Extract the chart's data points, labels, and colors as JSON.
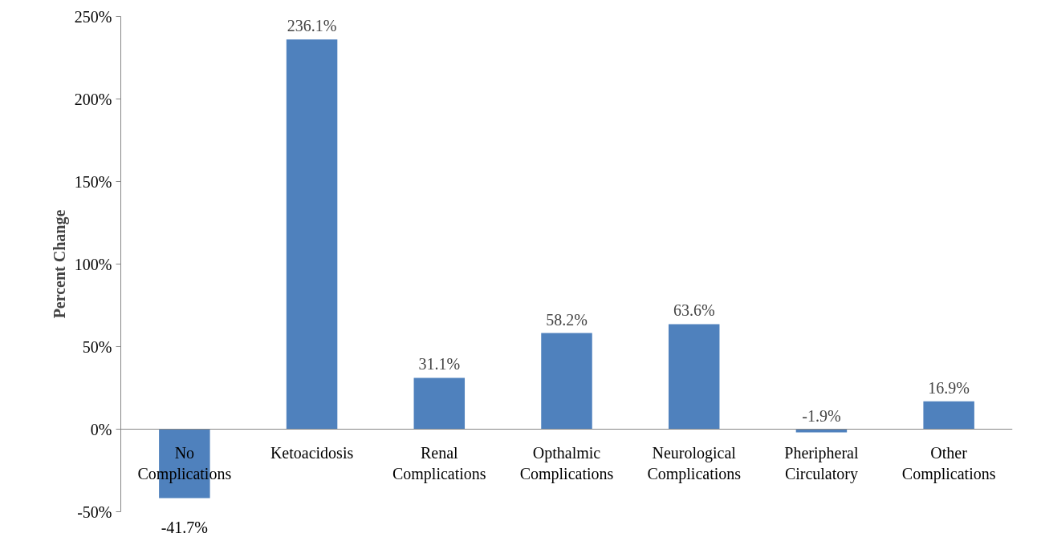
{
  "chart_data": {
    "type": "bar",
    "ylabel": "Percent Change",
    "categories": [
      "No\nComplications",
      "Ketoacidosis",
      "Renal\nComplications",
      "Opthalmic\nComplications",
      "Neurological\nComplications",
      "Pheripheral\nCirculatory",
      "Other\nComplications"
    ],
    "values": [
      -41.7,
      236.1,
      31.1,
      58.2,
      63.6,
      -1.9,
      16.9
    ],
    "color": "#4f81bd",
    "value_labels": [
      "-41.7%",
      "236.1%",
      "31.1%",
      "58.2%",
      "63.6%",
      "-1.9%",
      "16.9%"
    ],
    "ylim": [
      -50,
      250
    ],
    "yticks": [
      {
        "value": -50,
        "label": "-50%"
      },
      {
        "value": 0,
        "label": "0%"
      },
      {
        "value": 50,
        "label": "50%"
      },
      {
        "value": 100,
        "label": "100%"
      },
      {
        "value": 150,
        "label": "150%"
      },
      {
        "value": 200,
        "label": "200%"
      },
      {
        "value": 250,
        "label": "250%"
      }
    ],
    "grid": false
  }
}
